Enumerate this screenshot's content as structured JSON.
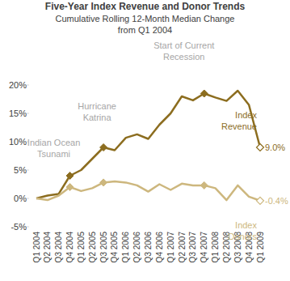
{
  "chart_data": {
    "type": "line",
    "title": "Five-Year Index Revenue and Donor Trends",
    "subtitle": [
      "Cumulative Rolling 12-Month Median Change",
      "from Q1 2004"
    ],
    "categories": [
      "Q1 2004",
      "Q2 2004",
      "Q3 2004",
      "Q4 2004",
      "Q1 2005",
      "Q2 2005",
      "Q3 2005",
      "Q4 2005",
      "Q1 2006",
      "Q2 2006",
      "Q3 2006",
      "Q4 2006",
      "Q1 2007",
      "Q2 2007",
      "Q3 2007",
      "Q4 2007",
      "Q1 2008",
      "Q2 2008",
      "Q3 2008",
      "Q4 2008",
      "Q1 2009"
    ],
    "series": [
      {
        "name": "Index Revenue",
        "color": "#8c6d1f",
        "marker": "diamond",
        "values": [
          0,
          0.5,
          0.8,
          4.0,
          5.0,
          7.0,
          9.0,
          8.5,
          10.7,
          11.3,
          10.5,
          13.0,
          15.0,
          18.0,
          17.3,
          18.5,
          17.8,
          17.2,
          19.0,
          16.5,
          9.0
        ],
        "value_labels": [
          null,
          null,
          null,
          null,
          null,
          null,
          null,
          null,
          null,
          null,
          null,
          null,
          null,
          null,
          null,
          null,
          null,
          null,
          null,
          null,
          "9.0%"
        ]
      },
      {
        "name": "Index Donors",
        "color": "#cdb77e",
        "marker": "diamond",
        "values": [
          0,
          -0.3,
          0.5,
          2.0,
          1.3,
          1.8,
          2.8,
          3.0,
          2.8,
          2.3,
          1.2,
          2.5,
          1.5,
          2.6,
          2.3,
          2.3,
          1.8,
          -0.3,
          2.3,
          0.3,
          -0.4
        ],
        "value_labels": [
          null,
          null,
          null,
          null,
          null,
          null,
          null,
          null,
          null,
          null,
          null,
          null,
          null,
          null,
          null,
          null,
          null,
          null,
          null,
          null,
          "-0.4%"
        ]
      }
    ],
    "annotations": [
      {
        "lines": [
          "Indian Ocean",
          "Tsunami"
        ],
        "category": "Q4 2004"
      },
      {
        "lines": [
          "Hurricane",
          "Katrina"
        ],
        "category": "Q3 2005"
      },
      {
        "lines": [
          "Start of Current",
          "Recession"
        ],
        "category": "Q4 2007"
      }
    ],
    "ylim": [
      -5,
      20
    ],
    "yticks": [
      {
        "value": -5,
        "label": "-5%"
      },
      {
        "value": 0,
        "label": "0%"
      },
      {
        "value": 5,
        "label": "5%"
      },
      {
        "value": 10,
        "label": "10%"
      },
      {
        "value": 15,
        "label": "15%"
      },
      {
        "value": 20,
        "label": "20%"
      }
    ],
    "grid": false
  }
}
